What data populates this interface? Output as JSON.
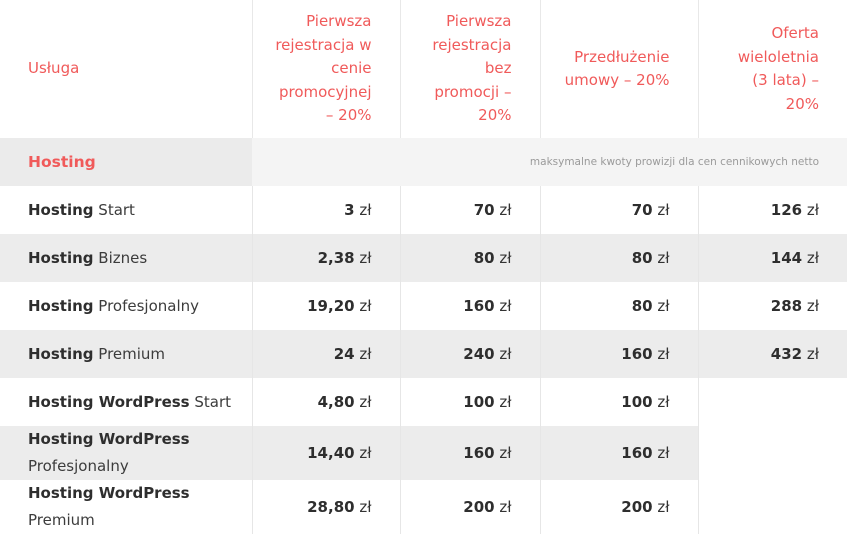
{
  "header": {
    "service": "Usługa",
    "col1": "Pierwsza rejestracja w cenie promocyjnej – 20%",
    "col2": "Pierwsza rejestracja bez promocji – 20%",
    "col3": "Przedłużenie umowy – 20%",
    "col4": "Oferta wieloletnia (3 lata) – 20%"
  },
  "section": {
    "name": "Hosting",
    "note": "maksymalne kwoty prowizji dla cen cennikowych netto"
  },
  "rows": [
    {
      "name_bold": "Hosting",
      "name_rest": "Start",
      "p1": "3",
      "p2": "70",
      "p3": "70",
      "p4": "126"
    },
    {
      "name_bold": "Hosting",
      "name_rest": "Biznes",
      "p1": "2,38",
      "p2": "80",
      "p3": "80",
      "p4": "144"
    },
    {
      "name_bold": "Hosting",
      "name_rest": "Profesjonalny",
      "p1": "19,20",
      "p2": "160",
      "p3": "80",
      "p4": "288"
    },
    {
      "name_bold": "Hosting",
      "name_rest": "Premium",
      "p1": "24",
      "p2": "240",
      "p3": "160",
      "p4": "432"
    },
    {
      "name_bold": "Hosting WordPress",
      "name_rest": "Start",
      "p1": "4,80",
      "p2": "100",
      "p3": "100",
      "p4": ""
    },
    {
      "name_bold": "Hosting WordPress",
      "name_rest": "Profesjonalny",
      "p1": "14,40",
      "p2": "160",
      "p3": "160",
      "p4": ""
    },
    {
      "name_bold": "Hosting WordPress",
      "name_rest": "Premium",
      "p1": "28,80",
      "p2": "200",
      "p3": "200",
      "p4": ""
    }
  ],
  "currency": "zł",
  "colors": {
    "accent": "#f05a5a",
    "stripe": "#ececec"
  }
}
